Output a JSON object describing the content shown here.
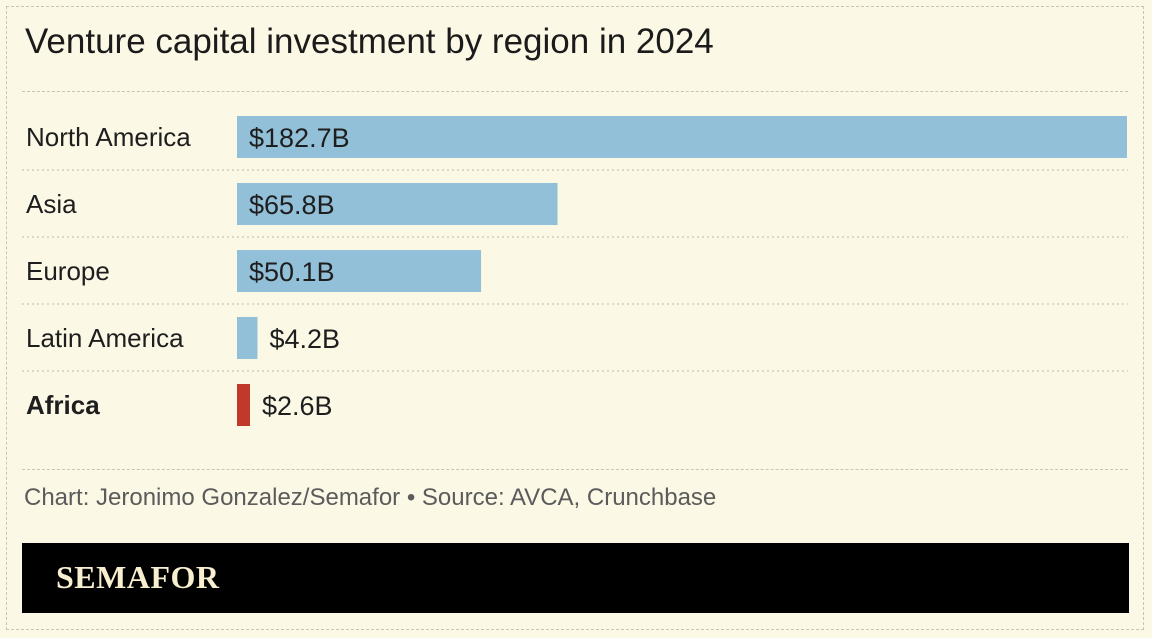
{
  "title": "Venture capital investment by region in 2024",
  "source": "Chart: Jeronimo Gonzalez/Semafor • Source: AVCA, Crunchbase",
  "brand": "SEMAFOR",
  "colors": {
    "background": "#fbf8e6",
    "bar_default": "#92c0d8",
    "bar_highlight": "#c1392b",
    "brand_bar": "#000000",
    "brand_text": "#f7efcf"
  },
  "chart_data": {
    "type": "bar",
    "orientation": "horizontal",
    "title": "Venture capital investment by region in 2024",
    "categories": [
      "North America",
      "Asia",
      "Europe",
      "Latin America",
      "Africa"
    ],
    "values": [
      182.7,
      65.8,
      50.1,
      4.2,
      2.6
    ],
    "value_labels": [
      "$182.7B",
      "$65.8B",
      "$50.1B",
      "$4.2B",
      "$2.6B"
    ],
    "highlight": "Africa",
    "unit": "$B",
    "xlim": [
      0,
      182.7
    ],
    "grid": false,
    "legend": "none"
  }
}
